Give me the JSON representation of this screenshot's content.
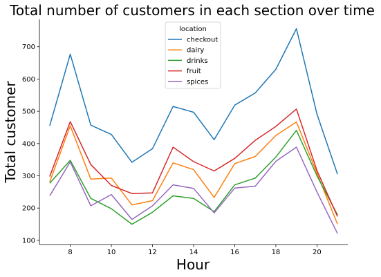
{
  "chart_data": {
    "type": "line",
    "title": "Total number of customers in each section over time",
    "xlabel": "Hour",
    "ylabel": "Total customer",
    "x": [
      7,
      8,
      9,
      10,
      11,
      12,
      13,
      14,
      15,
      16,
      17,
      18,
      19,
      20,
      21
    ],
    "xticks": [
      8,
      10,
      12,
      14,
      16,
      18,
      20
    ],
    "yticks": [
      100,
      200,
      300,
      400,
      500,
      600,
      700
    ],
    "xlim": [
      6.5,
      21.5
    ],
    "ylim": [
      87,
      785
    ],
    "legend": {
      "title": "location",
      "placement": "top-center"
    },
    "grid": false,
    "series": [
      {
        "name": "checkout",
        "color": "#1f77b4",
        "values": [
          455,
          677,
          457,
          428,
          342,
          384,
          515,
          497,
          412,
          519,
          557,
          630,
          756,
          491,
          305
        ]
      },
      {
        "name": "dairy",
        "color": "#ff7f0e",
        "values": [
          281,
          455,
          290,
          293,
          210,
          223,
          340,
          319,
          233,
          338,
          360,
          425,
          467,
          308,
          150
        ]
      },
      {
        "name": "drinks",
        "color": "#2ca02c",
        "values": [
          277,
          348,
          230,
          198,
          150,
          187,
          238,
          230,
          189,
          272,
          293,
          358,
          441,
          300,
          179
        ]
      },
      {
        "name": "fruit",
        "color": "#d62728",
        "values": [
          298,
          468,
          335,
          270,
          245,
          247,
          389,
          344,
          315,
          354,
          410,
          453,
          507,
          316,
          174
        ]
      },
      {
        "name": "spices",
        "color": "#9467bd",
        "values": [
          238,
          343,
          207,
          242,
          165,
          207,
          272,
          261,
          185,
          262,
          268,
          345,
          389,
          250,
          121
        ]
      }
    ]
  }
}
